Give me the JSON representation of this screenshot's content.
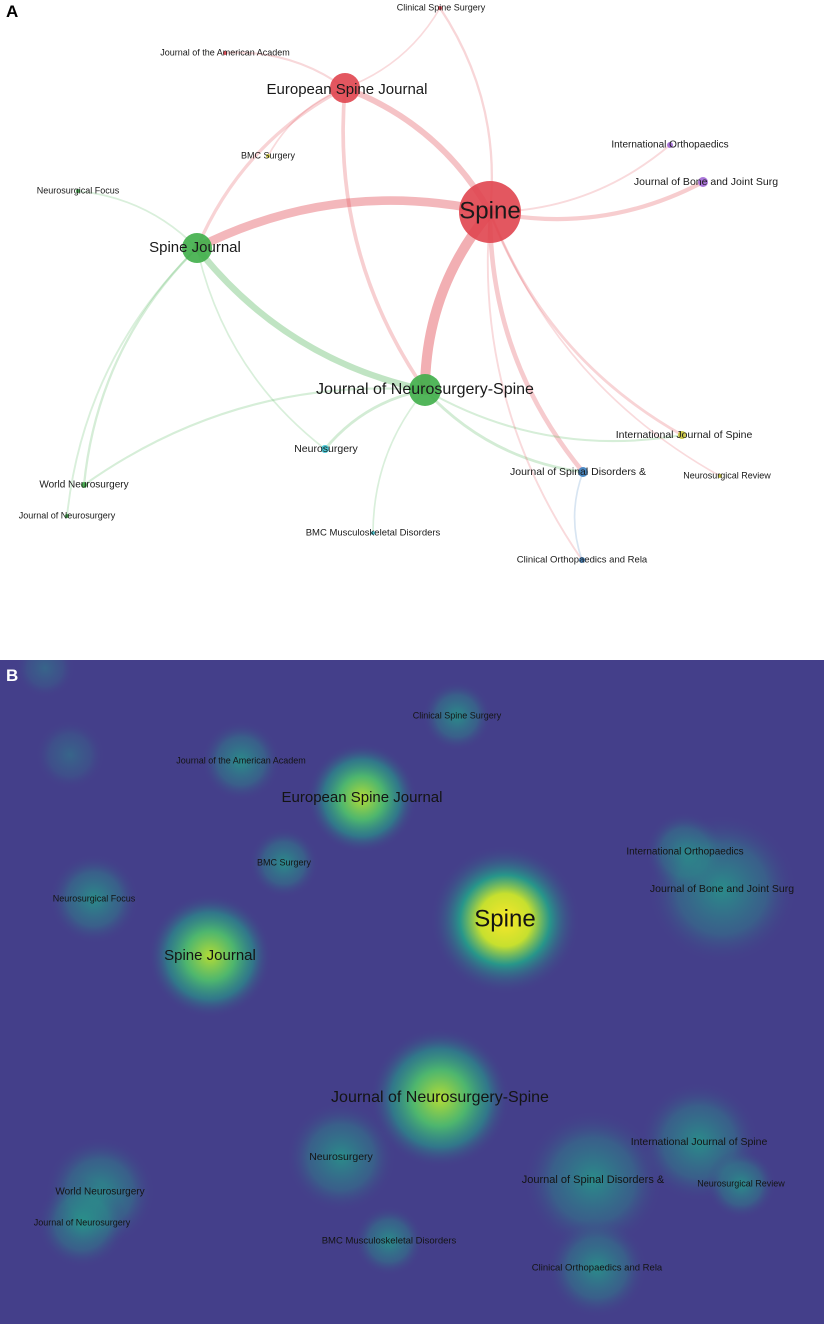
{
  "panel_a": {
    "letter": "A"
  },
  "panel_b": {
    "letter": "B"
  },
  "colors": {
    "red": "#e0454f",
    "green": "#3fae49",
    "blue": "#3a7fc0",
    "cyan": "#3cc7d6",
    "purple": "#a167d6",
    "yellow": "#c9c43a",
    "density_bg": "#443f8a",
    "density_teal": "#22a58a",
    "density_yellow": "#f8e72a"
  },
  "nodes": [
    {
      "id": "spine",
      "label": "Spine",
      "color": "red",
      "weight": 1.0
    },
    {
      "id": "esj",
      "label": "European Spine Journal",
      "color": "red",
      "weight": 0.45
    },
    {
      "id": "sj",
      "label": "Spine Journal",
      "color": "green",
      "weight": 0.48
    },
    {
      "id": "jns",
      "label": "Journal of Neurosurgery-Spine",
      "color": "green",
      "weight": 0.55
    },
    {
      "id": "css",
      "label": "Clinical Spine Surgery",
      "color": "red",
      "weight": 0.08
    },
    {
      "id": "jaa",
      "label": "Journal of the American Academ",
      "color": "red",
      "weight": 0.08
    },
    {
      "id": "bmcs",
      "label": "BMC Surgery",
      "color": "yellow",
      "weight": 0.06
    },
    {
      "id": "nf",
      "label": "Neurosurgical Focus",
      "color": "green",
      "weight": 0.07
    },
    {
      "id": "io",
      "label": "International Orthopaedics",
      "color": "purple",
      "weight": 0.08
    },
    {
      "id": "jbjs",
      "label": "Journal of Bone and Joint Surg",
      "color": "purple",
      "weight": 0.15
    },
    {
      "id": "neuro",
      "label": "Neurosurgery",
      "color": "cyan",
      "weight": 0.12
    },
    {
      "id": "ijs",
      "label": "International Journal of Spine",
      "color": "yellow",
      "weight": 0.12
    },
    {
      "id": "jsd",
      "label": "Journal of Spinal Disorders &",
      "color": "blue",
      "weight": 0.15
    },
    {
      "id": "nr",
      "label": "Neurosurgical Review",
      "color": "yellow",
      "weight": 0.07
    },
    {
      "id": "wn",
      "label": "World Neurosurgery",
      "color": "green",
      "weight": 0.1
    },
    {
      "id": "jn",
      "label": "Journal of Neurosurgery",
      "color": "green",
      "weight": 0.08
    },
    {
      "id": "bmcmd",
      "label": "BMC Musculoskeletal Disorders",
      "color": "cyan",
      "weight": 0.08
    },
    {
      "id": "cor",
      "label": "Clinical Orthopaedics and Rela",
      "color": "blue",
      "weight": 0.1
    }
  ],
  "links": [
    {
      "source": "spine",
      "target": "jns",
      "strength": 1.0
    },
    {
      "source": "spine",
      "target": "sj",
      "strength": 0.85
    },
    {
      "source": "sj",
      "target": "jns",
      "strength": 0.6
    },
    {
      "source": "spine",
      "target": "esj",
      "strength": 0.55
    },
    {
      "source": "spine",
      "target": "jbjs",
      "strength": 0.35
    },
    {
      "source": "spine",
      "target": "jsd",
      "strength": 0.4
    },
    {
      "source": "esj",
      "target": "jns",
      "strength": 0.3
    },
    {
      "source": "esj",
      "target": "sj",
      "strength": 0.25
    },
    {
      "source": "spine",
      "target": "css",
      "strength": 0.15
    },
    {
      "source": "spine",
      "target": "ijs",
      "strength": 0.2
    },
    {
      "source": "jns",
      "target": "neuro",
      "strength": 0.2
    },
    {
      "source": "jns",
      "target": "jsd",
      "strength": 0.2
    },
    {
      "source": "sj",
      "target": "wn",
      "strength": 0.15
    },
    {
      "source": "sj",
      "target": "jn",
      "strength": 0.1
    },
    {
      "source": "jns",
      "target": "wn",
      "strength": 0.12
    },
    {
      "source": "spine",
      "target": "io",
      "strength": 0.1
    },
    {
      "source": "esj",
      "target": "jaa",
      "strength": 0.12
    },
    {
      "source": "jns",
      "target": "ijs",
      "strength": 0.12
    },
    {
      "source": "spine",
      "target": "cor",
      "strength": 0.1
    },
    {
      "source": "sj",
      "target": "nf",
      "strength": 0.08
    },
    {
      "source": "jns",
      "target": "bmcmd",
      "strength": 0.08
    },
    {
      "source": "spine",
      "target": "nr",
      "strength": 0.08
    },
    {
      "source": "esj",
      "target": "bmcs",
      "strength": 0.08
    },
    {
      "source": "sj",
      "target": "neuro",
      "strength": 0.08
    },
    {
      "source": "jsd",
      "target": "cor",
      "strength": 0.08
    },
    {
      "source": "esj",
      "target": "css",
      "strength": 0.08
    }
  ]
}
